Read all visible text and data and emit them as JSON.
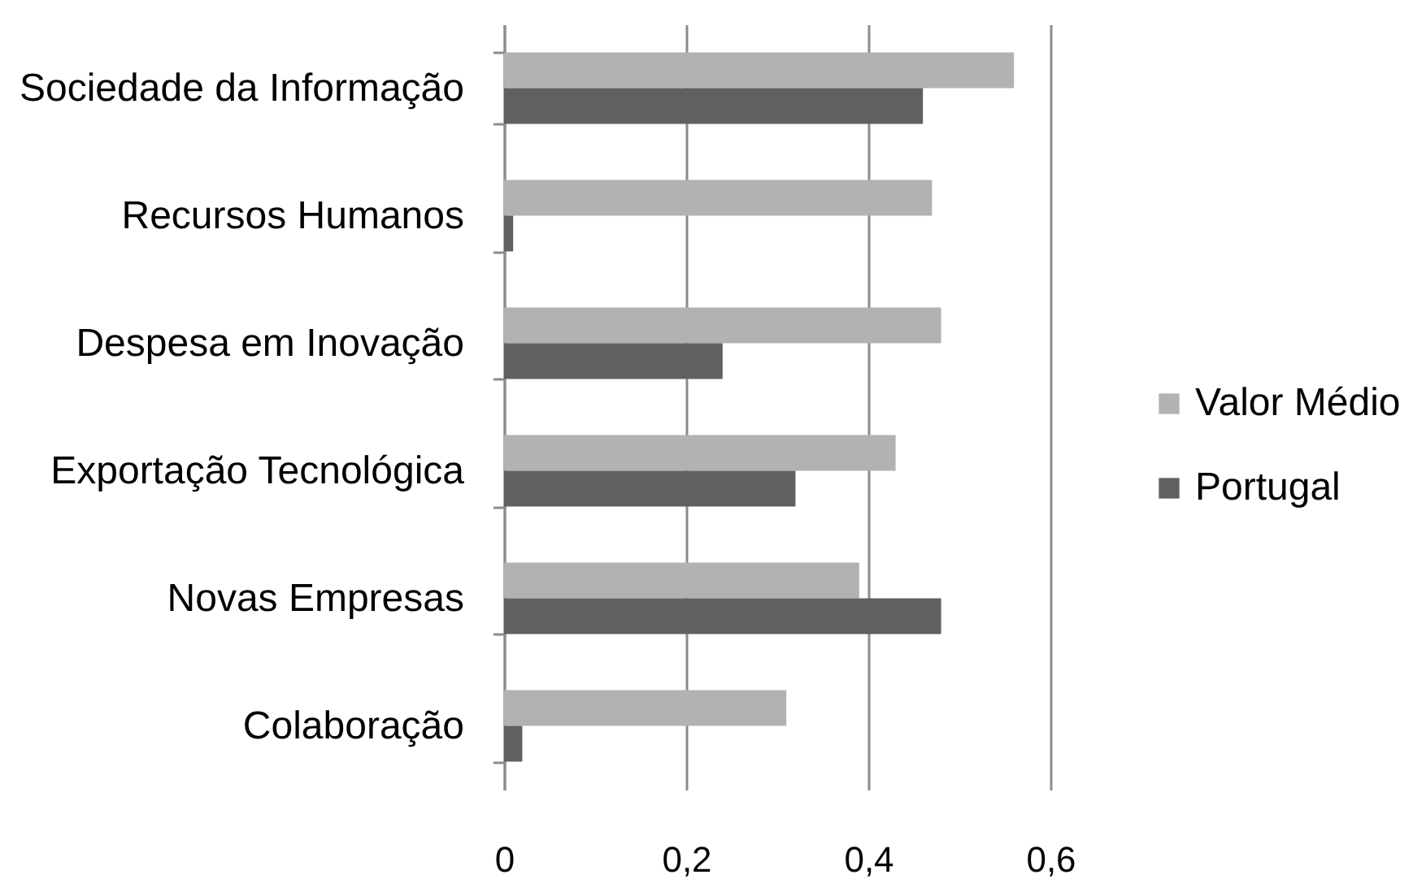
{
  "chart_data": {
    "type": "bar",
    "orientation": "horizontal",
    "categories": [
      "Sociedade da Informação",
      "Recursos Humanos",
      "Despesa em Inovação",
      "Exportação Tecnológica",
      "Novas Empresas",
      "Colaboração"
    ],
    "series": [
      {
        "name": "Valor Médio",
        "color": "#b2b2b2",
        "values": [
          0.56,
          0.47,
          0.48,
          0.43,
          0.39,
          0.31
        ]
      },
      {
        "name": "Portugal",
        "color": "#606060",
        "values": [
          0.46,
          0.01,
          0.24,
          0.32,
          0.48,
          0.02
        ]
      }
    ],
    "xlim": [
      0,
      0.6
    ],
    "xticks": [
      0,
      {
        "value": 0.2,
        "label": "0,2"
      },
      {
        "value": 0.4,
        "label": "0,4"
      },
      {
        "value": 0.6,
        "label": "0,6"
      }
    ],
    "grid": "x",
    "legend": "right"
  }
}
